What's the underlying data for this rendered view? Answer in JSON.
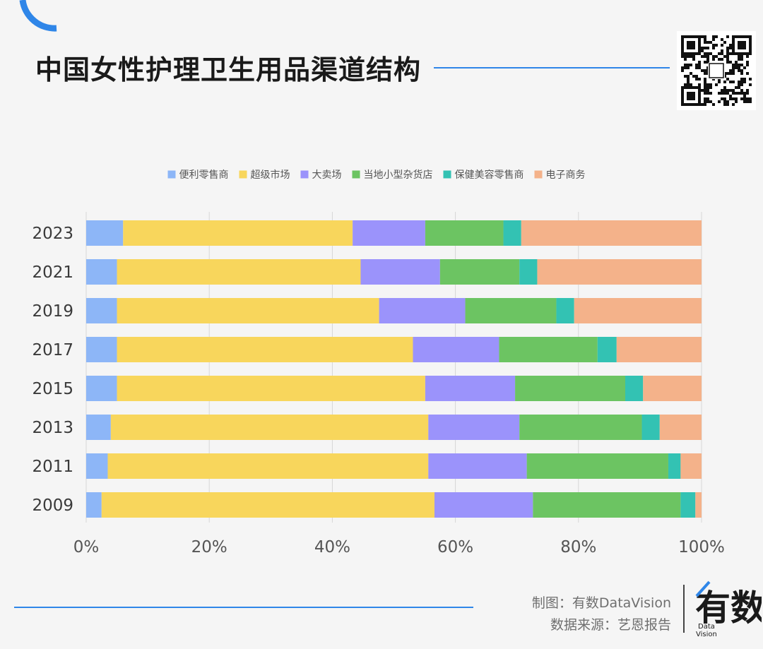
{
  "page": {
    "title": "中国女性护理卫生用品渠道结构",
    "credit_maker": "制图：有数DataVision",
    "credit_source": "数据来源：艺恩报告",
    "logo_mark": "有数",
    "logo_sub_1": "Data",
    "logo_sub_2": "Vision"
  },
  "colors": {
    "accent_blue": "#2f86e8",
    "grid": "#d6d6d6",
    "axis_text": "#555555"
  },
  "chart_data": {
    "type": "bar",
    "orientation": "horizontal",
    "stacked": true,
    "percent": true,
    "title": "中国女性护理卫生用品渠道结构",
    "categories": [
      "2023",
      "2021",
      "2019",
      "2017",
      "2015",
      "2013",
      "2011",
      "2009"
    ],
    "series": [
      {
        "name": "便利零售商",
        "color": "#8db6f7",
        "values": [
          6,
          5,
          5,
          5,
          5,
          4,
          3.5,
          2.5
        ]
      },
      {
        "name": "超级市场",
        "color": "#f8d65c",
        "values": [
          37.3,
          39.6,
          42.6,
          48.1,
          50.1,
          51.6,
          52.1,
          54.1
        ]
      },
      {
        "name": "大卖场",
        "color": "#9b93fb",
        "values": [
          11.8,
          12.9,
          14,
          14,
          14.6,
          14.8,
          16,
          16
        ]
      },
      {
        "name": "当地小型杂货店",
        "color": "#6cc462",
        "values": [
          12.7,
          12.9,
          14.8,
          16,
          17.9,
          19.9,
          23,
          24
        ]
      },
      {
        "name": "保健美容零售商",
        "color": "#33c2b3",
        "values": [
          2.9,
          2.9,
          2.9,
          3.1,
          2.9,
          2.9,
          2,
          2.4
        ]
      },
      {
        "name": "电子商务",
        "color": "#f4b28a",
        "values": [
          29.3,
          26.7,
          20.7,
          13.8,
          9.5,
          6.8,
          3.4,
          1
        ]
      }
    ],
    "x_ticks": [
      "0%",
      "20%",
      "40%",
      "60%",
      "80%",
      "100%"
    ],
    "xlim": [
      0,
      100
    ],
    "grid": true,
    "legend": "top-center"
  }
}
